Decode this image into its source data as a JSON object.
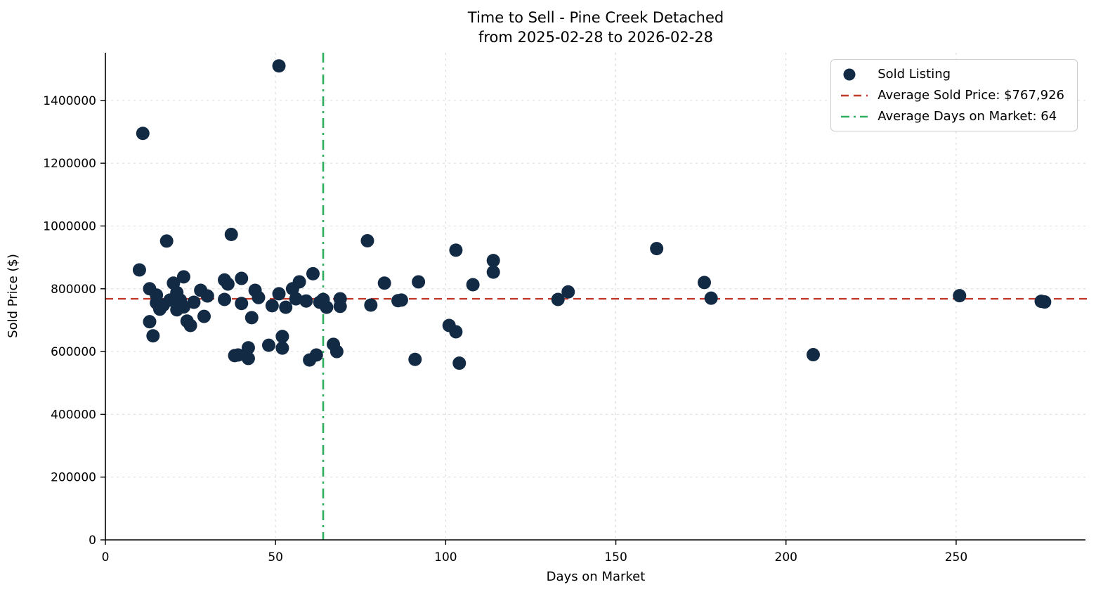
{
  "chart_data": {
    "type": "scatter",
    "title": "Time to Sell - Pine Creek Detached",
    "subtitle": "from 2025-02-28 to 2026-02-28",
    "xlabel": "Days on Market",
    "ylabel": "Sold Price ($)",
    "xlim": [
      0,
      288
    ],
    "ylim": [
      0,
      1552000
    ],
    "xticks": [
      0,
      50,
      100,
      150,
      200,
      250
    ],
    "yticks": [
      0,
      200000,
      400000,
      600000,
      800000,
      1000000,
      1200000,
      1400000
    ],
    "grid": true,
    "legend_position": "upper right",
    "colors": {
      "marker": "#122a44",
      "avg_price_line": "#c0392b",
      "avg_days_line": "#2eae5e"
    },
    "avg_sold_price": 767926,
    "avg_days_on_market": 64,
    "legend": [
      {
        "label": "Sold Listing",
        "glyph": "dot-marker",
        "color": "#122a44"
      },
      {
        "label": "Average Sold Price: $767,926",
        "glyph": "dashed-line",
        "color": "#c0392b"
      },
      {
        "label": "Average Days on Market: 64",
        "glyph": "dashdot-line",
        "color": "#2eae5e"
      }
    ],
    "series": [
      {
        "name": "Sold Listing",
        "type": "scatter",
        "points": [
          [
            11,
            1295000
          ],
          [
            51,
            1510000
          ],
          [
            10,
            860000
          ],
          [
            13,
            800000
          ],
          [
            13,
            695000
          ],
          [
            14,
            650000
          ],
          [
            15,
            780000
          ],
          [
            15,
            755000
          ],
          [
            16,
            735000
          ],
          [
            17,
            748000
          ],
          [
            18,
            952000
          ],
          [
            19,
            764000
          ],
          [
            20,
            818000
          ],
          [
            21,
            788000
          ],
          [
            21,
            733000
          ],
          [
            22,
            764000
          ],
          [
            23,
            838000
          ],
          [
            23,
            742000
          ],
          [
            24,
            697000
          ],
          [
            25,
            683000
          ],
          [
            26,
            757000
          ],
          [
            28,
            795000
          ],
          [
            29,
            712000
          ],
          [
            30,
            777000
          ],
          [
            35,
            828000
          ],
          [
            35,
            766000
          ],
          [
            36,
            815000
          ],
          [
            37,
            973000
          ],
          [
            38,
            587000
          ],
          [
            39,
            589000
          ],
          [
            40,
            833000
          ],
          [
            40,
            753000
          ],
          [
            42,
            578000
          ],
          [
            42,
            612000
          ],
          [
            43,
            708000
          ],
          [
            44,
            795000
          ],
          [
            45,
            772000
          ],
          [
            48,
            620000
          ],
          [
            49,
            746000
          ],
          [
            51,
            784000
          ],
          [
            52,
            611000
          ],
          [
            52,
            648000
          ],
          [
            53,
            741000
          ],
          [
            55,
            800000
          ],
          [
            56,
            768000
          ],
          [
            57,
            822000
          ],
          [
            59,
            761000
          ],
          [
            60,
            573000
          ],
          [
            61,
            848000
          ],
          [
            62,
            589000
          ],
          [
            63,
            757000
          ],
          [
            64,
            766000
          ],
          [
            65,
            741000
          ],
          [
            67,
            623000
          ],
          [
            68,
            600000
          ],
          [
            69,
            744000
          ],
          [
            69,
            768000
          ],
          [
            77,
            953000
          ],
          [
            78,
            748000
          ],
          [
            82,
            818000
          ],
          [
            86,
            762000
          ],
          [
            87,
            764000
          ],
          [
            91,
            575000
          ],
          [
            92,
            822000
          ],
          [
            101,
            683000
          ],
          [
            103,
            923000
          ],
          [
            103,
            663000
          ],
          [
            104,
            563000
          ],
          [
            108,
            813000
          ],
          [
            114,
            890000
          ],
          [
            114,
            853000
          ],
          [
            133,
            766000
          ],
          [
            136,
            790000
          ],
          [
            162,
            928000
          ],
          [
            176,
            820000
          ],
          [
            178,
            770000
          ],
          [
            208,
            590000
          ],
          [
            251,
            778000
          ],
          [
            275,
            760000
          ],
          [
            276,
            758000
          ]
        ]
      }
    ]
  }
}
